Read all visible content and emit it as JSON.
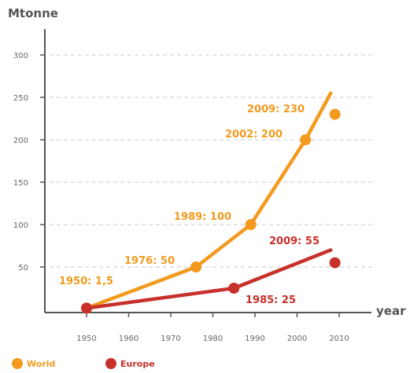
{
  "chart_data": {
    "type": "line",
    "ylabel": "Mtonne",
    "xlabel": "year",
    "ylim": [
      0,
      300
    ],
    "xlim": [
      1950,
      2010
    ],
    "y_ticks": [
      50,
      100,
      150,
      200,
      250,
      300
    ],
    "x_ticks": [
      1950,
      1960,
      1970,
      1980,
      1990,
      2000,
      2010
    ],
    "grid": "horizontal dashed",
    "legend_position": "bottom-left",
    "series": [
      {
        "name": "World",
        "color": "#f39a1e",
        "points": [
          [
            1950,
            1.5
          ],
          [
            1976,
            50
          ],
          [
            1989,
            100
          ],
          [
            2002,
            200
          ],
          [
            2008,
            255
          ]
        ],
        "markers": [
          [
            1950,
            1.5
          ],
          [
            1976,
            50
          ],
          [
            1989,
            100
          ],
          [
            2002,
            200
          ],
          [
            2009,
            230
          ]
        ]
      },
      {
        "name": "Europe",
        "color": "#c8302b",
        "points": [
          [
            1950,
            1.5
          ],
          [
            1985,
            25
          ],
          [
            2008,
            70
          ]
        ],
        "markers": [
          [
            1950,
            1.5
          ],
          [
            1985,
            25
          ],
          [
            2009,
            55
          ]
        ]
      }
    ],
    "annotations": [
      {
        "text": "1950: 1,5",
        "series": "World"
      },
      {
        "text": "1976: 50",
        "series": "World"
      },
      {
        "text": "1989: 100",
        "series": "World"
      },
      {
        "text": "2002: 200",
        "series": "World"
      },
      {
        "text": "2009: 230",
        "series": "World"
      },
      {
        "text": "2009: 55",
        "series": "Europe"
      },
      {
        "text": "1985: 25",
        "series": "Europe"
      }
    ]
  }
}
